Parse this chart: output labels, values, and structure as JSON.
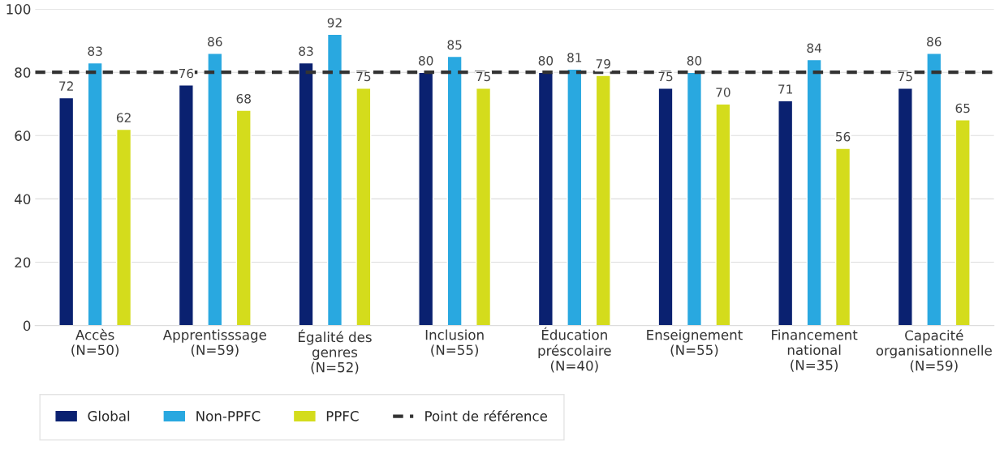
{
  "chart_data": {
    "type": "bar",
    "categories": [
      "Accès\n(N=50)",
      "Apprentisssage\n(N=59)",
      "Égalité des\ngenres\n(N=52)",
      "Inclusion\n(N=55)",
      "Éducation\npréscolaire\n(N=40)",
      "Enseignement\n(N=55)",
      "Financement\nnational\n(N=35)",
      "Capacité\norganisationnelle\n(N=59)"
    ],
    "series": [
      {
        "name": "Global",
        "color": "#0a2170",
        "values": [
          72,
          76,
          83,
          80,
          80,
          75,
          71,
          75
        ]
      },
      {
        "name": "Non-PPFC",
        "color": "#29a8e0",
        "values": [
          83,
          86,
          92,
          85,
          81,
          80,
          84,
          86
        ]
      },
      {
        "name": "PPFC",
        "color": "#d4dc1c",
        "values": [
          62,
          68,
          75,
          75,
          79,
          70,
          56,
          65
        ]
      }
    ],
    "ylim": [
      0,
      100
    ],
    "yticks": [
      0,
      20,
      40,
      60,
      80,
      100
    ],
    "grid": "y",
    "data_labels": true,
    "ref_lines": [
      {
        "axis": "y",
        "value": 80,
        "label": "Point de référence",
        "color": "#333333",
        "line_style": "dashed"
      }
    ],
    "legend": "bottom left"
  }
}
